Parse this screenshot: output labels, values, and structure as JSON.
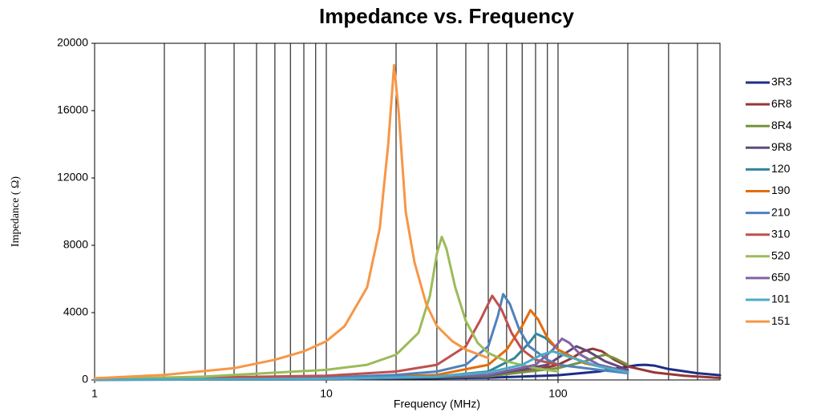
{
  "chart_data": {
    "type": "line",
    "title": "Impedance vs. Frequency",
    "x_label": "Frequency (MHz)",
    "y_label": "Impedance ( Ω)",
    "x_log": true,
    "xlim": [
      1,
      500
    ],
    "ylim": [
      0,
      20000
    ],
    "xticks": [
      1,
      10,
      100
    ],
    "xgrid": [
      2,
      3,
      4,
      5,
      6,
      7,
      8,
      9,
      10,
      20,
      30,
      40,
      50,
      60,
      70,
      80,
      90,
      100,
      200,
      300,
      400
    ],
    "yticks": [
      0,
      4000,
      8000,
      12000,
      16000,
      20000
    ],
    "legend": "right",
    "series": [
      {
        "name": "3R3",
        "color": "#1f2d86",
        "x": [
          1,
          10,
          50,
          100,
          150,
          190,
          220,
          238,
          260,
          300,
          400,
          500
        ],
        "values": [
          10,
          40,
          130,
          280,
          500,
          750,
          880,
          900,
          850,
          650,
          400,
          280
        ]
      },
      {
        "name": "6R8",
        "color": "#953735",
        "x": [
          1,
          10,
          50,
          80,
          100,
          115,
          128,
          141,
          155,
          175,
          200,
          260,
          350,
          500
        ],
        "values": [
          15,
          60,
          250,
          600,
          900,
          1300,
          1700,
          1850,
          1700,
          1200,
          800,
          450,
          250,
          120
        ]
      },
      {
        "name": "8R4",
        "color": "#77933c",
        "x": [
          1,
          10,
          50,
          100,
          130,
          150,
          160,
          175,
          200
        ],
        "values": [
          15,
          50,
          220,
          700,
          1100,
          1400,
          1500,
          1300,
          900
        ]
      },
      {
        "name": "9R8",
        "color": "#604a7b",
        "x": [
          1,
          10,
          50,
          90,
          105,
          120,
          135,
          160,
          200
        ],
        "values": [
          15,
          55,
          260,
          900,
          1500,
          2000,
          1700,
          1100,
          600
        ]
      },
      {
        "name": "120",
        "color": "#31859c",
        "x": [
          1,
          10,
          30,
          50,
          65,
          75,
          80.5,
          88,
          100,
          130,
          200
        ],
        "values": [
          20,
          80,
          200,
          500,
          1300,
          2200,
          2750,
          2500,
          1800,
          1000,
          450
        ]
      },
      {
        "name": "190",
        "color": "#e46c0a",
        "x": [
          1,
          10,
          30,
          50,
          60,
          70,
          76,
          82,
          90,
          100,
          130,
          200
        ],
        "values": [
          30,
          100,
          300,
          900,
          1800,
          3200,
          4150,
          3600,
          2500,
          1800,
          1000,
          480
        ]
      },
      {
        "name": "210",
        "color": "#4f81bd",
        "x": [
          1,
          10,
          20,
          30,
          40,
          50,
          55,
          58,
          62,
          68,
          75,
          90,
          100,
          150,
          200
        ],
        "values": [
          30,
          150,
          300,
          500,
          900,
          2000,
          3800,
          5100,
          4500,
          3000,
          2000,
          1200,
          900,
          600,
          400
        ]
      },
      {
        "name": "310",
        "color": "#c0504d",
        "x": [
          1,
          10,
          20,
          30,
          40,
          46,
          52,
          57,
          63,
          70,
          80,
          100
        ],
        "values": [
          50,
          250,
          500,
          900,
          2000,
          3500,
          5000,
          4200,
          2800,
          1800,
          1200,
          900
        ]
      },
      {
        "name": "520",
        "color": "#9bbb59",
        "x": [
          1,
          3,
          10,
          15,
          20,
          25,
          28,
          30,
          31.5,
          33,
          36,
          40,
          45,
          50,
          60,
          80,
          100
        ],
        "values": [
          50,
          200,
          600,
          900,
          1500,
          2800,
          5000,
          7500,
          8500,
          7800,
          5500,
          3500,
          2200,
          1600,
          1100,
          700,
          500
        ]
      },
      {
        "name": "650",
        "color": "#8064a2",
        "x": [
          1,
          10,
          50,
          80,
          95,
          104,
          112,
          125,
          150,
          200
        ],
        "values": [
          20,
          60,
          300,
          900,
          1800,
          2450,
          2200,
          1500,
          900,
          500
        ]
      },
      {
        "name": "101",
        "color": "#4bacc6",
        "x": [
          1,
          10,
          30,
          50,
          70,
          85,
          95,
          110,
          150,
          200
        ],
        "values": [
          20,
          70,
          200,
          450,
          900,
          1500,
          1700,
          1400,
          800,
          450
        ]
      },
      {
        "name": "151",
        "color": "#f79646",
        "x": [
          1,
          2,
          4,
          6,
          8,
          10,
          12,
          15,
          17,
          18.5,
          19.6,
          20.5,
          22,
          24,
          27,
          30,
          35,
          40,
          50
        ],
        "values": [
          100,
          300,
          700,
          1200,
          1700,
          2300,
          3200,
          5500,
          9000,
          14000,
          18700,
          16000,
          10000,
          7000,
          4500,
          3200,
          2300,
          1800,
          1300
        ]
      }
    ]
  }
}
